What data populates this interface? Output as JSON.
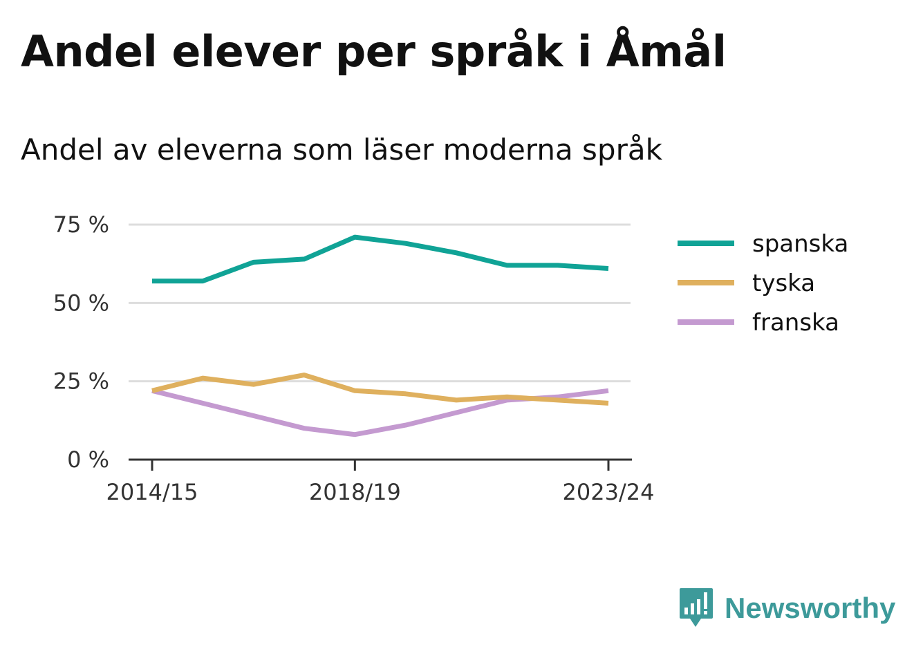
{
  "title": "Andel elever per språk i Åmål",
  "subtitle": "Andel av eleverna som läser moderna språk",
  "brand": {
    "name": "Newsworthy",
    "color": "#3d9a9a",
    "icon": "newsworthy-logo-icon"
  },
  "chart_data": {
    "type": "line",
    "x": [
      "2014/15",
      "2015/16",
      "2016/17",
      "2017/18",
      "2018/19",
      "2019/20",
      "2020/21",
      "2021/22",
      "2022/23",
      "2023/24"
    ],
    "x_tick_labels": [
      "2014/15",
      "2018/19",
      "2023/24"
    ],
    "y_ticks": [
      0,
      25,
      50,
      75
    ],
    "y_tick_labels": [
      "0 %",
      "25 %",
      "50 %",
      "75 %"
    ],
    "ylim": [
      0,
      75
    ],
    "grid": true,
    "legend_position": "right",
    "series": [
      {
        "name": "spanska",
        "color": "#10a396",
        "values": [
          57,
          57,
          63,
          64,
          71,
          69,
          66,
          62,
          62,
          61
        ]
      },
      {
        "name": "tyska",
        "color": "#dfb05e",
        "values": [
          22,
          26,
          24,
          27,
          22,
          21,
          19,
          20,
          19,
          18
        ]
      },
      {
        "name": "franska",
        "color": "#c49ad0",
        "values": [
          22,
          18,
          14,
          10,
          8,
          11,
          15,
          19,
          20,
          22
        ]
      }
    ]
  }
}
